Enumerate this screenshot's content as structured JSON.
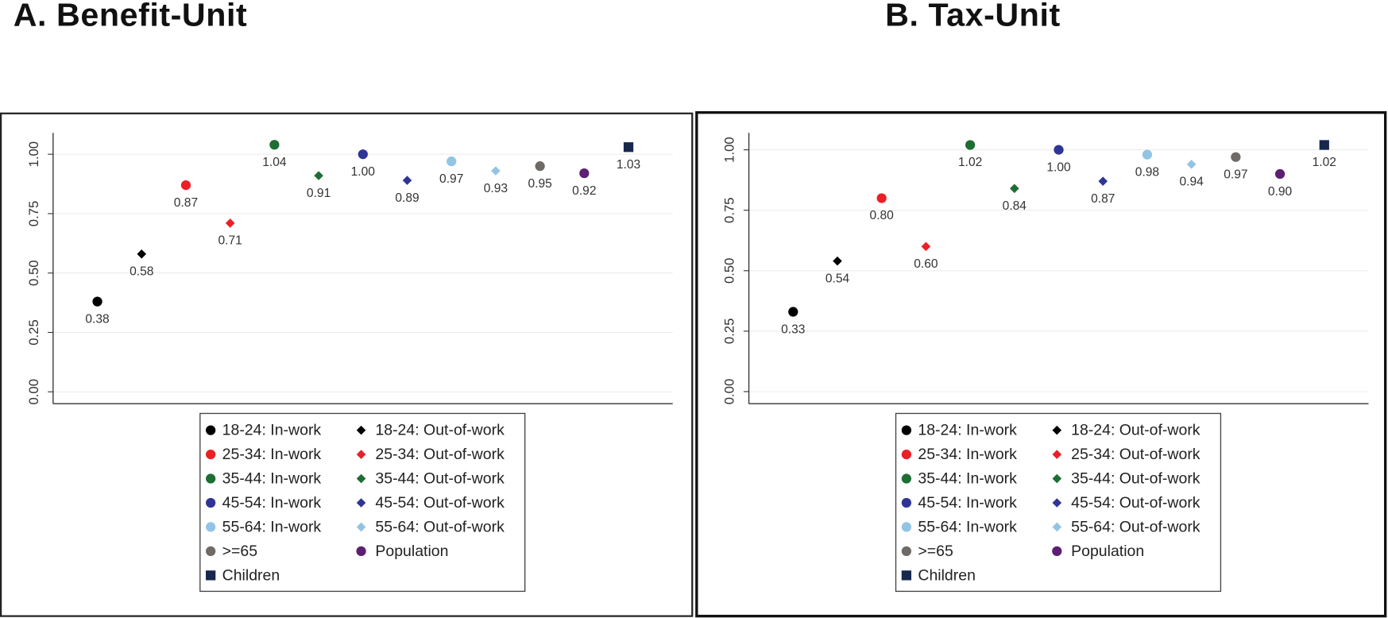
{
  "chart_data": [
    {
      "title": "A. Benefit-Unit",
      "type": "scatter",
      "ylim": [
        -0.05,
        1.09
      ],
      "yticks": [
        0,
        0.25,
        0.5,
        0.75,
        1.0
      ],
      "ytick_labels": [
        "0.00",
        "0.25",
        "0.50",
        "0.75",
        "1.00"
      ],
      "grid": true,
      "legend_position": "bottom",
      "series": [
        {
          "name": "18-24: In-work",
          "marker": "circle",
          "color": "#000000",
          "value": 0.38,
          "label": "0.38"
        },
        {
          "name": "18-24: Out-of-work",
          "marker": "diamond",
          "color": "#000000",
          "value": 0.58,
          "label": "0.58"
        },
        {
          "name": "25-34: In-work",
          "marker": "circle",
          "color": "#ec1f26",
          "value": 0.87,
          "label": "0.87"
        },
        {
          "name": "25-34: Out-of-work",
          "marker": "diamond",
          "color": "#ec1f26",
          "value": 0.71,
          "label": "0.71"
        },
        {
          "name": "35-44: In-work",
          "marker": "circle",
          "color": "#1d6e33",
          "value": 1.04,
          "label": "1.04"
        },
        {
          "name": "35-44: Out-of-work",
          "marker": "diamond",
          "color": "#1d6e33",
          "value": 0.91,
          "label": "0.91"
        },
        {
          "name": "45-54: In-work",
          "marker": "circle",
          "color": "#2f3597",
          "value": 1.0,
          "label": "1.00"
        },
        {
          "name": "45-54: Out-of-work",
          "marker": "diamond",
          "color": "#2f3597",
          "value": 0.89,
          "label": "0.89"
        },
        {
          "name": "55-64: In-work",
          "marker": "circle",
          "color": "#92c4e4",
          "value": 0.97,
          "label": "0.97"
        },
        {
          "name": "55-64: Out-of-work",
          "marker": "diamond",
          "color": "#92c4e4",
          "value": 0.93,
          "label": "0.93"
        },
        {
          "name": ">=65",
          "marker": "circle",
          "color": "#6f6a66",
          "value": 0.95,
          "label": "0.95"
        },
        {
          "name": "Population",
          "marker": "circle",
          "color": "#5c1f72",
          "value": 0.92,
          "label": "0.92"
        },
        {
          "name": "Children",
          "marker": "square",
          "color": "#17274e",
          "value": 1.03,
          "label": "1.03"
        }
      ]
    },
    {
      "title": "B. Tax-Unit",
      "type": "scatter",
      "ylim": [
        -0.05,
        1.07
      ],
      "yticks": [
        0,
        0.25,
        0.5,
        0.75,
        1.0
      ],
      "ytick_labels": [
        "0.00",
        "0.25",
        "0.50",
        "0.75",
        "1.00"
      ],
      "grid": true,
      "legend_position": "bottom",
      "series": [
        {
          "name": "18-24: In-work",
          "marker": "circle",
          "color": "#000000",
          "value": 0.33,
          "label": "0.33"
        },
        {
          "name": "18-24: Out-of-work",
          "marker": "diamond",
          "color": "#000000",
          "value": 0.54,
          "label": "0.54"
        },
        {
          "name": "25-34: In-work",
          "marker": "circle",
          "color": "#ec1f26",
          "value": 0.8,
          "label": "0.80"
        },
        {
          "name": "25-34: Out-of-work",
          "marker": "diamond",
          "color": "#ec1f26",
          "value": 0.6,
          "label": "0.60"
        },
        {
          "name": "35-44: In-work",
          "marker": "circle",
          "color": "#1d6e33",
          "value": 1.02,
          "label": "1.02"
        },
        {
          "name": "35-44: Out-of-work",
          "marker": "diamond",
          "color": "#1d6e33",
          "value": 0.84,
          "label": "0.84"
        },
        {
          "name": "45-54: In-work",
          "marker": "circle",
          "color": "#2f3597",
          "value": 1.0,
          "label": "1.00"
        },
        {
          "name": "45-54: Out-of-work",
          "marker": "diamond",
          "color": "#2f3597",
          "value": 0.87,
          "label": "0.87"
        },
        {
          "name": "55-64: In-work",
          "marker": "circle",
          "color": "#92c4e4",
          "value": 0.98,
          "label": "0.98"
        },
        {
          "name": "55-64: Out-of-work",
          "marker": "diamond",
          "color": "#92c4e4",
          "value": 0.94,
          "label": "0.94"
        },
        {
          "name": ">=65",
          "marker": "circle",
          "color": "#6f6a66",
          "value": 0.97,
          "label": "0.97"
        },
        {
          "name": "Population",
          "marker": "circle",
          "color": "#5c1f72",
          "value": 0.9,
          "label": "0.90"
        },
        {
          "name": "Children",
          "marker": "square",
          "color": "#17274e",
          "value": 1.02,
          "label": "1.02"
        }
      ]
    }
  ]
}
